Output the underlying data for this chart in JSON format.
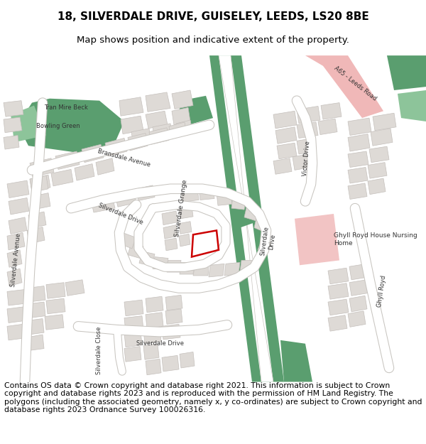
{
  "title_line1": "18, SILVERDALE DRIVE, GUISELEY, LEEDS, LS20 8BE",
  "title_line2": "Map shows position and indicative extent of the property.",
  "footer_text": "Contains OS data © Crown copyright and database right 2021. This information is subject to Crown copyright and database rights 2023 and is reproduced with the permission of HM Land Registry. The polygons (including the associated geometry, namely x, y co-ordinates) are subject to Crown copyright and database rights 2023 Ordnance Survey 100026316.",
  "map_bg": "#f2f0ed",
  "road_fill": "#ffffff",
  "road_edge": "#c8c5c0",
  "bldg_fill": "#dedad6",
  "bldg_edge": "#c5c0bc",
  "green_dark": "#5a9e6f",
  "green_light": "#8dc49a",
  "pink_light": "#f2c4c4",
  "pink_road": "#f0b8b8",
  "red_poly": "#cc0000",
  "text_color": "#333333",
  "title_fs": 11,
  "sub_fs": 9.5,
  "footer_fs": 7.8,
  "label_fs": 6.0
}
